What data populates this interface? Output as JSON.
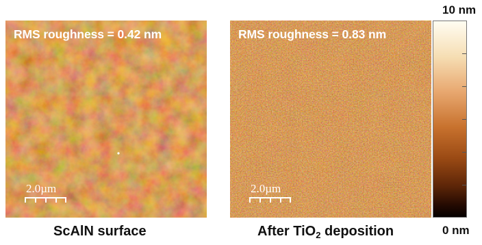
{
  "panels": [
    {
      "rms_label": "RMS roughness = 0.42 nm",
      "scale_label": "2.0µm",
      "caption": "ScAlN surface"
    },
    {
      "rms_label": "RMS roughness = 0.83 nm",
      "scale_label": "2.0µm",
      "caption_prefix": "After TiO",
      "caption_sub": "2",
      "caption_suffix": " deposition"
    }
  ],
  "colorbar": {
    "max_label": "10 nm",
    "min_label": "0 nm"
  },
  "colors": {
    "afm_base": "#b8601c",
    "afm_dark": "#7a3308",
    "afm_light": "#f3bf7a"
  }
}
